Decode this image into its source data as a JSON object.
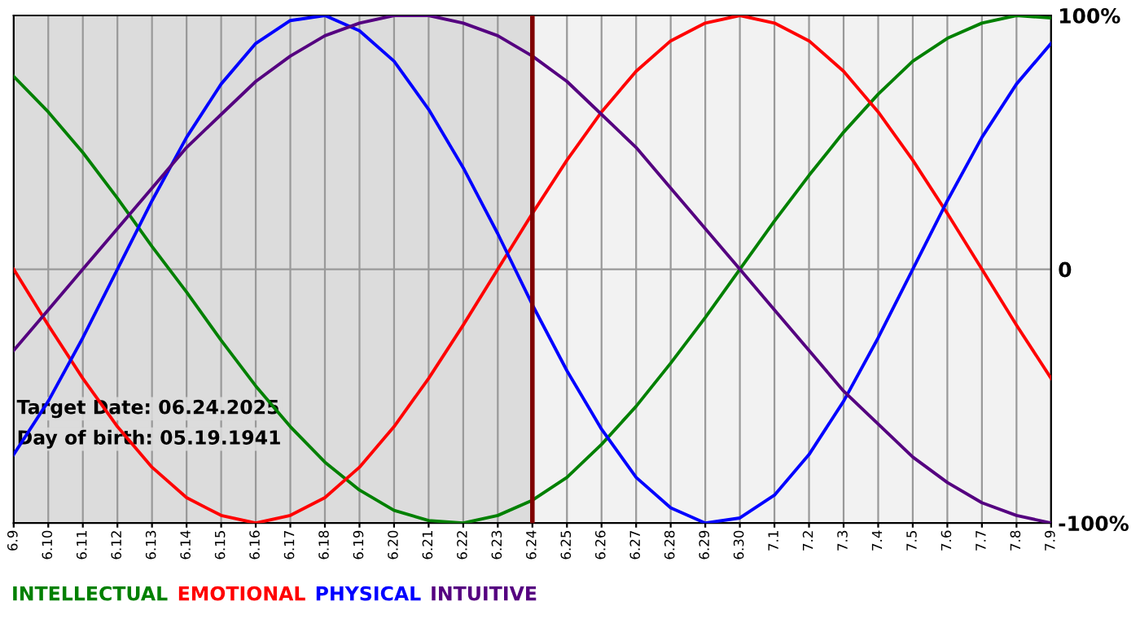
{
  "chart_data": {
    "type": "line",
    "categories": [
      "6.9",
      "6.10",
      "6.11",
      "6.12",
      "6.13",
      "6.14",
      "6.15",
      "6.16",
      "6.17",
      "6.18",
      "6.19",
      "6.20",
      "6.21",
      "6.22",
      "6.23",
      "6.24",
      "6.25",
      "6.26",
      "6.27",
      "6.28",
      "6.29",
      "6.30",
      "7.1",
      "7.2",
      "7.3",
      "7.4",
      "7.5",
      "7.6",
      "7.7",
      "7.8",
      "7.9"
    ],
    "series": [
      {
        "name": "INTELLECTUAL",
        "color": "#008000",
        "values": [
          76,
          62,
          46,
          28,
          9,
          -9,
          -28,
          -46,
          -62,
          -76,
          -87,
          -95,
          -99,
          -100,
          -97,
          -91,
          -82,
          -69,
          -54,
          -37,
          -19,
          0,
          19,
          37,
          54,
          69,
          82,
          91,
          97,
          100,
          99
        ]
      },
      {
        "name": "EMOTIONAL",
        "color": "#ff0000",
        "values": [
          0,
          -22,
          -43,
          -62,
          -78,
          -90,
          -97,
          -100,
          -97,
          -90,
          -78,
          -62,
          -43,
          -22,
          0,
          22,
          43,
          62,
          78,
          90,
          97,
          100,
          97,
          90,
          78,
          62,
          43,
          22,
          0,
          -22,
          -43
        ]
      },
      {
        "name": "PHYSICAL",
        "color": "#0000ff",
        "values": [
          -73,
          -52,
          -27,
          0,
          27,
          52,
          73,
          89,
          98,
          100,
          94,
          82,
          63,
          40,
          14,
          -14,
          -40,
          -63,
          -82,
          -94,
          -100,
          -98,
          -89,
          -73,
          -52,
          -27,
          0,
          27,
          52,
          73,
          89
        ]
      },
      {
        "name": "INTUITIVE",
        "color": "#550080",
        "values": [
          -32,
          -16,
          0,
          16,
          32,
          48,
          61,
          74,
          84,
          92,
          97,
          100,
          100,
          97,
          92,
          84,
          74,
          61,
          48,
          32,
          16,
          0,
          -16,
          -32,
          -48,
          -61,
          -74,
          -84,
          -92,
          -97,
          -100
        ]
      }
    ],
    "ylim": [
      -100,
      100
    ],
    "yticks": [
      {
        "value": 100,
        "label": "100%"
      },
      0,
      {
        "value": -100,
        "label": "-100%"
      }
    ],
    "grid": true,
    "legend": "bottom",
    "ref_lines": [
      {
        "axis": "x",
        "value": "6.24",
        "color": "#800000"
      }
    ],
    "bands": [
      {
        "axis": "x",
        "from": "6.9",
        "to": "6.24",
        "color": "#dcdcdc"
      }
    ],
    "annotations": [
      "Target Date: 06.24.2025",
      "Day of birth: 05.19.1941"
    ]
  }
}
